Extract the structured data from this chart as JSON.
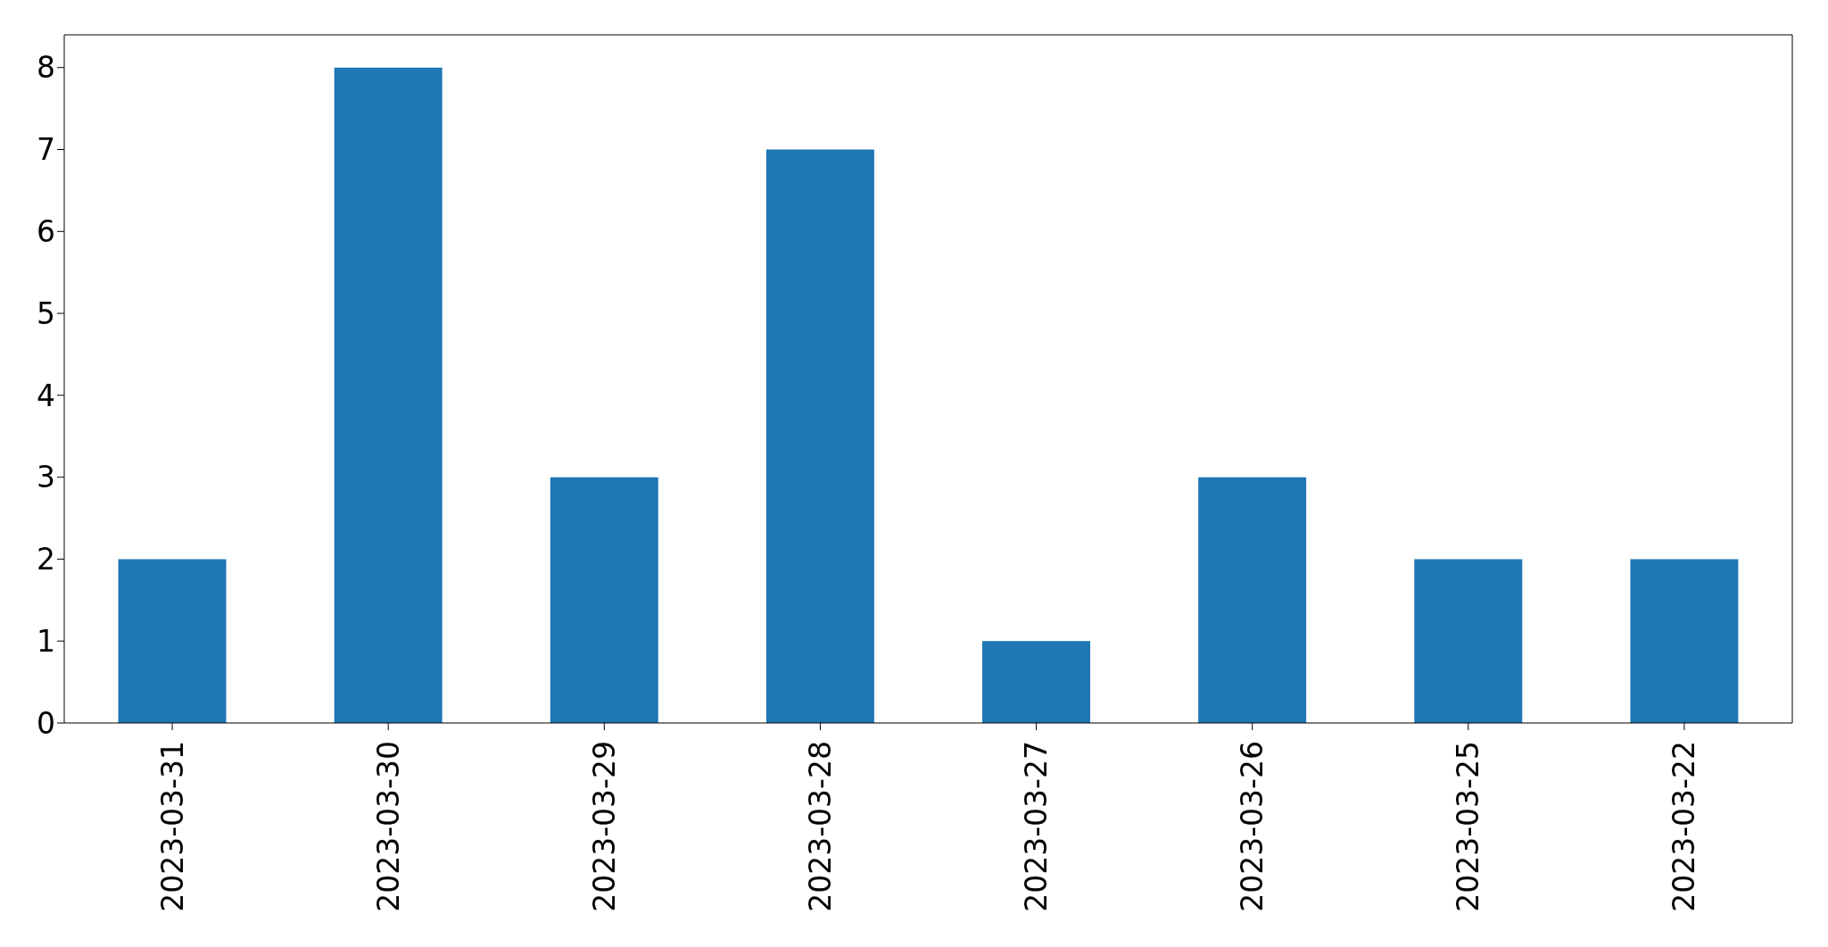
{
  "chart_data": {
    "type": "bar",
    "categories": [
      "2023-03-31",
      "2023-03-30",
      "2023-03-29",
      "2023-03-28",
      "2023-03-27",
      "2023-03-26",
      "2023-03-25",
      "2023-03-22"
    ],
    "values": [
      2,
      8,
      3,
      7,
      1,
      3,
      2,
      2
    ],
    "color": "#1f77b4",
    "ylim": [
      0,
      8.4
    ],
    "yticks": [
      0,
      1,
      2,
      3,
      4,
      5,
      6,
      7,
      8
    ],
    "grid": false
  }
}
